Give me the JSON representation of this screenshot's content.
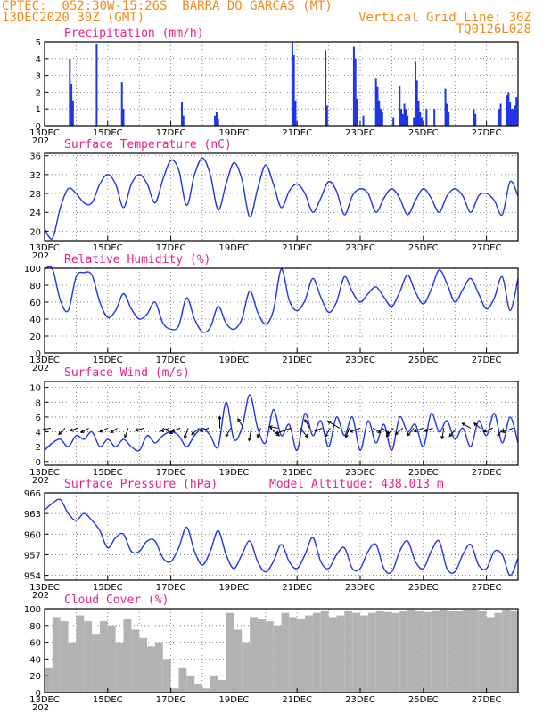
{
  "header": {
    "line1": "CPTEC:  052:30W-15:26S  BARRA DO GARCAS (MT)",
    "line2_left": "13DEC2020 30Z (GMT)",
    "line2_right": "Vertical Grid Line: 30Z",
    "line3_right": "TQ0126L028"
  },
  "colors": {
    "header": "#f08a1c",
    "title": "#e8208a",
    "series": "#1f35e6",
    "cloud": "#b2b2b2"
  },
  "x_axis": {
    "tick_labels": [
      "13DEC",
      "15DEC",
      "17DEC",
      "19DEC",
      "21DEC",
      "23DEC",
      "25DEC",
      "27DEC"
    ],
    "tick_days": [
      13,
      15,
      17,
      19,
      21,
      23,
      25,
      27
    ],
    "year_stub": "202",
    "range_days": [
      13.0,
      28.0
    ]
  },
  "chart_data": [
    {
      "type": "bar",
      "title": "Precipitation (mm/h)",
      "ylim": [
        0,
        5
      ],
      "yticks": [
        "0",
        "1",
        "2",
        "3",
        "4",
        "5"
      ],
      "x_day": [
        13.8,
        13.85,
        13.9,
        14.65,
        15.45,
        15.5,
        17.35,
        17.4,
        18.4,
        18.45,
        18.5,
        20.85,
        20.9,
        20.95,
        21.9,
        21.95,
        22.8,
        22.85,
        22.9,
        23.1,
        23.5,
        23.55,
        23.6,
        23.65,
        23.7,
        24.05,
        24.25,
        24.3,
        24.35,
        24.4,
        24.45,
        24.5,
        24.7,
        24.75,
        24.8,
        24.85,
        24.9,
        24.95,
        25.1,
        25.35,
        25.7,
        25.75,
        25.8,
        26.6,
        26.65,
        27.4,
        27.45,
        27.65,
        27.7,
        27.75,
        27.8,
        27.85,
        27.9,
        27.95
      ],
      "values": [
        4.0,
        2.5,
        1.5,
        4.9,
        2.6,
        1.0,
        1.4,
        0.6,
        0.6,
        0.8,
        0.4,
        5.0,
        4.2,
        1.5,
        4.5,
        1.2,
        4.7,
        4.0,
        1.6,
        0.6,
        2.8,
        2.3,
        1.5,
        1.0,
        0.8,
        0.5,
        2.4,
        1.0,
        0.7,
        1.3,
        1.0,
        0.6,
        0.5,
        3.8,
        2.7,
        1.5,
        0.8,
        0.5,
        1.0,
        1.0,
        2.2,
        1.3,
        0.8,
        1.0,
        0.7,
        1.0,
        1.3,
        1.8,
        2.0,
        1.4,
        1.0,
        1.0,
        1.2,
        1.7
      ]
    },
    {
      "type": "line",
      "title": "Surface Temperature (nC)",
      "ylim": [
        18,
        36.5
      ],
      "yticks": [
        "20",
        "24",
        "28",
        "32",
        "36"
      ],
      "x_day": [
        13.0,
        13.25,
        13.5,
        13.75,
        14.0,
        14.25,
        14.5,
        14.75,
        15.0,
        15.25,
        15.5,
        15.75,
        16.0,
        16.25,
        16.5,
        16.75,
        17.0,
        17.25,
        17.5,
        17.75,
        18.0,
        18.25,
        18.5,
        18.75,
        19.0,
        19.25,
        19.5,
        19.75,
        20.0,
        20.25,
        20.5,
        20.75,
        21.0,
        21.25,
        21.5,
        21.75,
        22.0,
        22.25,
        22.5,
        22.75,
        23.0,
        23.25,
        23.5,
        23.75,
        24.0,
        24.25,
        24.5,
        24.75,
        25.0,
        25.25,
        25.5,
        25.75,
        26.0,
        26.25,
        26.5,
        26.75,
        27.0,
        27.25,
        27.5,
        27.75,
        28.0
      ],
      "values": [
        20.5,
        18.5,
        25.0,
        29.0,
        28.0,
        26.0,
        26.0,
        30.0,
        32.0,
        30.0,
        25.0,
        30.0,
        32.0,
        30.0,
        26.0,
        31.0,
        35.0,
        33.0,
        25.5,
        32.0,
        35.5,
        32.0,
        24.5,
        30.0,
        34.5,
        31.0,
        23.0,
        29.0,
        34.0,
        30.0,
        25.0,
        28.5,
        30.0,
        28.0,
        24.0,
        27.0,
        30.5,
        28.5,
        23.5,
        27.5,
        29.0,
        28.0,
        24.0,
        27.0,
        29.0,
        27.0,
        23.5,
        26.5,
        29.0,
        27.0,
        24.0,
        27.5,
        29.0,
        27.5,
        24.0,
        27.5,
        28.0,
        26.5,
        23.5,
        30.5,
        27.5
      ]
    },
    {
      "type": "line",
      "title": "Relative Humidity (%)",
      "ylim": [
        0,
        100
      ],
      "yticks": [
        "0",
        "20",
        "40",
        "60",
        "80",
        "100"
      ],
      "x_day": [
        13.0,
        13.25,
        13.5,
        13.75,
        14.0,
        14.25,
        14.5,
        14.75,
        15.0,
        15.25,
        15.5,
        15.75,
        16.0,
        16.25,
        16.5,
        16.75,
        17.0,
        17.25,
        17.5,
        17.75,
        18.0,
        18.25,
        18.5,
        18.75,
        19.0,
        19.25,
        19.5,
        19.75,
        20.0,
        20.25,
        20.5,
        20.75,
        21.0,
        21.25,
        21.5,
        21.75,
        22.0,
        22.25,
        22.5,
        22.75,
        23.0,
        23.25,
        23.5,
        23.75,
        24.0,
        24.25,
        24.5,
        24.75,
        25.0,
        25.25,
        25.5,
        25.75,
        26.0,
        26.25,
        26.5,
        26.75,
        27.0,
        27.25,
        27.5,
        27.75,
        28.0
      ],
      "values": [
        99.0,
        99.0,
        62.0,
        50.0,
        90.0,
        95.0,
        92.0,
        60.0,
        42.0,
        50.0,
        70.0,
        52.0,
        40.0,
        46.0,
        60.0,
        35.0,
        28.0,
        32.0,
        65.0,
        40.0,
        25.0,
        30.0,
        55.0,
        35.0,
        28.0,
        40.0,
        73.0,
        48.0,
        34.0,
        50.0,
        99.0,
        62.0,
        50.0,
        62.0,
        88.0,
        66.0,
        48.0,
        60.0,
        90.0,
        72.0,
        60.0,
        70.0,
        78.0,
        66.0,
        55.0,
        72.0,
        92.0,
        72.0,
        58.0,
        75.0,
        98.0,
        82.0,
        60.0,
        75.0,
        88.0,
        70.0,
        52.0,
        65.0,
        90.0,
        50.0,
        88.0
      ]
    },
    {
      "type": "line",
      "title": "Surface Wind (m/s)",
      "ylim": [
        -0.5,
        10.8
      ],
      "yticks": [
        "0",
        "2",
        "4",
        "6",
        "8",
        "10"
      ],
      "x_day": [
        13.0,
        13.25,
        13.5,
        13.75,
        14.0,
        14.25,
        14.5,
        14.75,
        15.0,
        15.25,
        15.5,
        15.75,
        16.0,
        16.25,
        16.5,
        16.75,
        17.0,
        17.25,
        17.5,
        17.75,
        18.0,
        18.25,
        18.5,
        18.75,
        19.0,
        19.25,
        19.5,
        19.75,
        20.0,
        20.25,
        20.5,
        20.75,
        21.0,
        21.25,
        21.5,
        21.75,
        22.0,
        22.25,
        22.5,
        22.75,
        23.0,
        23.25,
        23.5,
        23.75,
        24.0,
        24.25,
        24.5,
        24.75,
        25.0,
        25.25,
        25.5,
        25.75,
        26.0,
        26.25,
        26.5,
        26.75,
        27.0,
        27.25,
        27.5,
        27.75,
        28.0
      ],
      "values": [
        1.5,
        2.5,
        3.0,
        2.0,
        3.5,
        3.0,
        4.0,
        2.0,
        3.0,
        2.0,
        3.0,
        2.0,
        1.5,
        3.5,
        2.5,
        3.5,
        4.0,
        3.5,
        2.0,
        3.5,
        4.5,
        3.5,
        2.0,
        8.0,
        3.0,
        4.5,
        9.0,
        4.5,
        2.5,
        7.0,
        3.5,
        5.0,
        1.5,
        6.5,
        3.5,
        5.5,
        2.0,
        6.0,
        3.5,
        6.0,
        1.5,
        5.5,
        2.5,
        5.0,
        1.5,
        6.0,
        4.0,
        5.0,
        2.0,
        6.5,
        4.0,
        5.5,
        3.0,
        4.5,
        2.0,
        5.5,
        3.5,
        6.5,
        2.5,
        6.0,
        2.5
      ],
      "arrows_x_day": [
        13.2,
        13.65,
        14.05,
        14.4,
        15.0,
        15.3,
        15.65,
        16.15,
        16.75,
        16.95,
        17.3,
        17.55,
        17.9,
        18.2,
        18.55,
        18.9,
        19.3,
        19.55,
        19.85,
        20.15,
        20.4,
        20.8,
        21.1,
        21.4,
        21.8,
        22.05,
        22.35,
        22.65,
        23.0,
        23.4,
        23.7,
        24.05,
        24.35,
        24.7,
        25.0,
        25.3,
        25.65,
        26.05,
        26.5,
        26.8,
        27.2,
        27.55,
        27.85
      ],
      "arrows_angle_deg": [
        190,
        225,
        200,
        210,
        205,
        215,
        250,
        195,
        330,
        200,
        200,
        250,
        220,
        200,
        90,
        240,
        120,
        260,
        250,
        320,
        170,
        200,
        310,
        120,
        200,
        240,
        150,
        250,
        200,
        330,
        320,
        230,
        220,
        230,
        200,
        200,
        260,
        230,
        150,
        140,
        200,
        230,
        200
      ],
      "arrows_length": [
        0.8,
        0.9,
        0.8,
        0.9,
        0.9,
        0.8,
        1.0,
        0.9,
        1.1,
        0.9,
        0.9,
        1.1,
        1.0,
        0.9,
        1.2,
        1.0,
        1.1,
        1.3,
        1.0,
        1.2,
        0.9,
        1.6,
        1.2,
        1.0,
        0.8,
        1.0,
        1.4,
        1.0,
        1.1,
        0.9,
        0.9,
        1.1,
        1.0,
        1.0,
        1.0,
        0.9,
        1.1,
        1.1,
        1.0,
        0.8,
        1.0,
        1.0,
        1.2
      ]
    },
    {
      "type": "line",
      "title": "Surface Pressure (hPa)",
      "subtitle": "Model Altitude: 438.013 m",
      "ylim": [
        953.3,
        966
      ],
      "yticks": [
        "954",
        "957",
        "960",
        "963",
        "966"
      ],
      "x_day": [
        13.0,
        13.25,
        13.5,
        13.75,
        14.0,
        14.25,
        14.5,
        14.75,
        15.0,
        15.25,
        15.5,
        15.75,
        16.0,
        16.25,
        16.5,
        16.75,
        17.0,
        17.25,
        17.5,
        17.75,
        18.0,
        18.25,
        18.5,
        18.75,
        19.0,
        19.25,
        19.5,
        19.75,
        20.0,
        20.25,
        20.5,
        20.75,
        21.0,
        21.25,
        21.5,
        21.75,
        22.0,
        22.25,
        22.5,
        22.75,
        23.0,
        23.25,
        23.5,
        23.75,
        24.0,
        24.25,
        24.5,
        24.75,
        25.0,
        25.25,
        25.5,
        25.75,
        26.0,
        26.25,
        26.5,
        26.75,
        27.0,
        27.25,
        27.5,
        27.75,
        28.0
      ],
      "values": [
        963.5,
        964.5,
        965.0,
        963.0,
        962.0,
        963.0,
        962.0,
        960.5,
        958.0,
        959.5,
        960.0,
        957.5,
        957.5,
        959.0,
        959.0,
        956.5,
        956.0,
        958.0,
        961.0,
        957.5,
        955.5,
        957.5,
        960.5,
        957.0,
        955.0,
        957.0,
        959.0,
        956.0,
        954.5,
        956.0,
        958.5,
        956.0,
        955.0,
        957.0,
        959.5,
        956.0,
        955.0,
        957.0,
        958.0,
        955.0,
        955.0,
        957.5,
        958.5,
        955.0,
        954.5,
        957.5,
        959.0,
        956.0,
        955.0,
        957.5,
        959.0,
        955.0,
        954.5,
        957.0,
        958.5,
        955.5,
        955.0,
        957.5,
        957.0,
        954.0,
        956.5
      ]
    },
    {
      "type": "area",
      "title": "Cloud Cover (%)",
      "ylim": [
        0,
        100
      ],
      "yticks": [
        "0",
        "20",
        "40",
        "60",
        "80",
        "100"
      ],
      "x_day": [
        13.0,
        13.25,
        13.5,
        13.75,
        14.0,
        14.25,
        14.5,
        14.75,
        15.0,
        15.25,
        15.5,
        15.75,
        16.0,
        16.25,
        16.5,
        16.75,
        17.0,
        17.25,
        17.5,
        17.75,
        18.0,
        18.25,
        18.5,
        18.75,
        19.0,
        19.25,
        19.5,
        19.75,
        20.0,
        20.25,
        20.5,
        20.75,
        21.0,
        21.25,
        21.5,
        21.75,
        22.0,
        22.25,
        22.5,
        22.75,
        23.0,
        23.25,
        23.5,
        23.75,
        24.0,
        24.25,
        24.5,
        24.75,
        25.0,
        25.25,
        25.5,
        25.75,
        26.0,
        26.25,
        26.5,
        26.75,
        27.0,
        27.25,
        27.5,
        27.75,
        28.0
      ],
      "values": [
        30.0,
        90.0,
        85.0,
        60.0,
        92.0,
        85.0,
        70.0,
        85.0,
        80.0,
        60.0,
        88.0,
        75.0,
        65.0,
        55.0,
        60.0,
        40.0,
        5.0,
        30.0,
        20.0,
        10.0,
        5.0,
        20.0,
        15.0,
        95.0,
        75.0,
        60.0,
        90.0,
        88.0,
        85.0,
        80.0,
        95.0,
        90.0,
        88.0,
        92.0,
        95.0,
        98.0,
        90.0,
        92.0,
        98.0,
        95.0,
        92.0,
        95.0,
        98.0,
        96.0,
        95.0,
        97.0,
        99.0,
        98.0,
        96.0,
        98.0,
        99.0,
        97.0,
        97.0,
        99.0,
        99.0,
        98.0,
        90.0,
        95.0,
        99.0,
        98.0,
        97.0
      ]
    }
  ]
}
